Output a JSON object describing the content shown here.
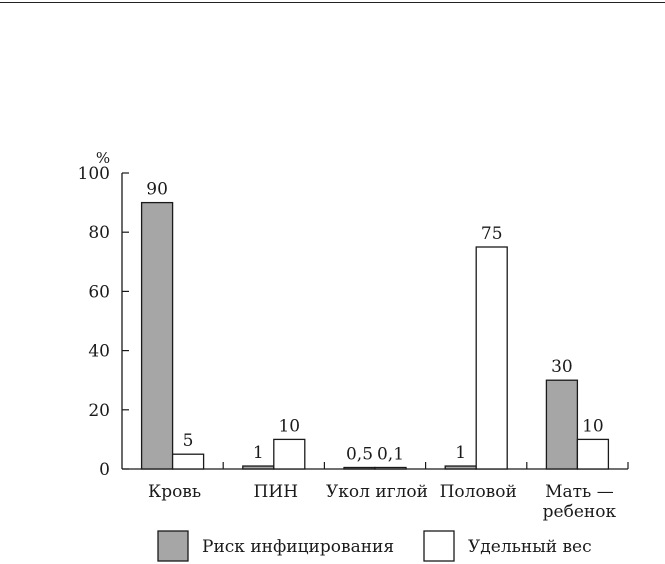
{
  "chart_data": {
    "type": "bar",
    "title": "",
    "xlabel": "",
    "ylabel": "%",
    "ylim": [
      0,
      100
    ],
    "yticks": [
      0,
      20,
      40,
      60,
      80,
      100
    ],
    "categories": [
      [
        "Кровь"
      ],
      [
        "ПИН"
      ],
      [
        "Укол иглой"
      ],
      [
        "Половой"
      ],
      [
        "Мать —",
        "ребенок"
      ]
    ],
    "series": [
      {
        "name": "Риск инфицирования",
        "color": "#a6a6a6",
        "values": [
          90,
          1,
          0.5,
          1,
          30
        ],
        "value_labels": [
          "90",
          "1",
          "0,5",
          "1",
          "30"
        ]
      },
      {
        "name": "Удельный вес",
        "color": "#ffffff",
        "values": [
          5,
          10,
          0.1,
          75,
          10
        ],
        "value_labels": [
          "5",
          "10",
          "0,1",
          "75",
          "10"
        ]
      }
    ],
    "grid": false,
    "legend": "bottom"
  }
}
